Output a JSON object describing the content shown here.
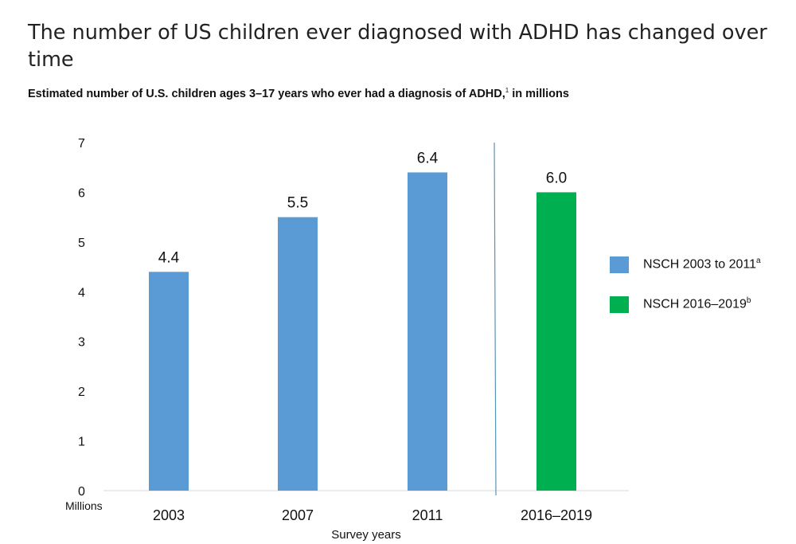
{
  "title": "The number of US children ever diagnosed with ADHD has changed over time",
  "subtitle": {
    "text": "Estimated number of U.S. children ages 3–17 years who ever had a diagnosis of ADHD,",
    "footnote": "1",
    "suffix": " in millions"
  },
  "colors": {
    "nsch_2003_2011": "#5b9bd5",
    "nsch_2016_2019": "#00b050",
    "divider": "#5a93b8",
    "axis": "#d9d9d9"
  },
  "chart_data": {
    "type": "bar",
    "categories": [
      "2003",
      "2007",
      "2011",
      "2016–2019"
    ],
    "series": [
      {
        "name": "NSCH 2003 to 2011",
        "name_sup": "a",
        "values": [
          4.4,
          5.5,
          6.4,
          null
        ]
      },
      {
        "name": "NSCH 2016–2019",
        "name_sup": "b",
        "values": [
          null,
          null,
          null,
          6.0
        ]
      }
    ],
    "data_labels": [
      "4.4",
      "5.5",
      "6.4",
      "6.0"
    ],
    "xlabel": "Survey years",
    "ylabel": "Millions",
    "ylim": [
      0,
      7
    ],
    "yticks": [
      0,
      1,
      2,
      3,
      4,
      5,
      6,
      7
    ],
    "grid": false,
    "divider_between": [
      "2011",
      "2016–2019"
    ],
    "legend_position": "right"
  }
}
